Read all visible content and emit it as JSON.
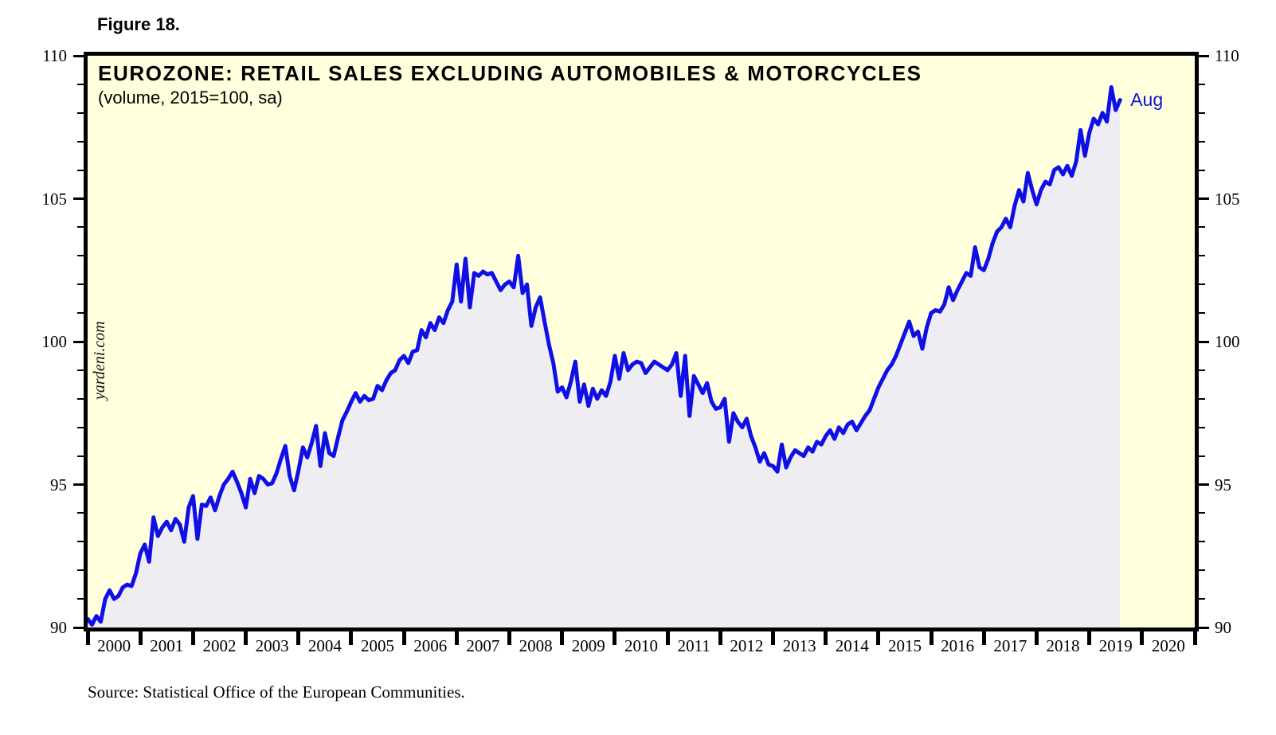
{
  "figure_label": "Figure 18.",
  "source": "Source: Statistical Office of the European Communities.",
  "watermark": "yardeni.com",
  "colors": {
    "plot_background": "#FFFFDE",
    "area_fill": "#EEEEF2",
    "line": "#0F0FE6",
    "frame": "#000000",
    "annotation": "#1414D8",
    "page_background": "#FFFFFF"
  },
  "chart_data": {
    "type": "line",
    "title": "EUROZONE: RETAIL SALES EXCLUDING AUTOMOBILES & MOTORCYCLES",
    "subtitle": "(volume, 2015=100, sa)",
    "frequency": "monthly",
    "x_start": "2000-01",
    "x_end": "2019-08",
    "x_axis": {
      "start_year": 2000,
      "end_year": 2021,
      "tick_labels": [
        "2000",
        "2001",
        "2002",
        "2003",
        "2004",
        "2005",
        "2006",
        "2007",
        "2008",
        "2009",
        "2010",
        "2011",
        "2012",
        "2013",
        "2014",
        "2015",
        "2016",
        "2017",
        "2018",
        "2019",
        "2020"
      ]
    },
    "y_axis": {
      "min": 90,
      "max": 110,
      "major_step": 5,
      "minor_step": 1,
      "major_ticks": [
        90,
        95,
        100,
        105,
        110
      ],
      "labels_both_sides": true
    },
    "grid": false,
    "legend": "none",
    "series": [
      {
        "name": "Eurozone retail sales excluding automobiles & motorcycles (volume index, 2015=100, sa)",
        "last_point_label": "Aug",
        "values": [
          90.3,
          90.1,
          90.4,
          90.2,
          91.0,
          91.3,
          91.0,
          91.1,
          91.4,
          91.5,
          91.45,
          91.9,
          92.6,
          92.9,
          92.3,
          93.85,
          93.2,
          93.5,
          93.7,
          93.4,
          93.8,
          93.6,
          93.0,
          94.2,
          94.6,
          93.1,
          94.3,
          94.25,
          94.55,
          94.1,
          94.6,
          95.0,
          95.2,
          95.45,
          95.1,
          94.7,
          94.2,
          95.2,
          94.7,
          95.3,
          95.2,
          95.0,
          95.05,
          95.4,
          95.9,
          96.35,
          95.3,
          94.8,
          95.5,
          96.3,
          95.95,
          96.45,
          97.05,
          95.65,
          96.8,
          96.1,
          96.0,
          96.65,
          97.25,
          97.55,
          97.9,
          98.2,
          97.9,
          98.1,
          97.95,
          98.0,
          98.45,
          98.3,
          98.65,
          98.9,
          99.0,
          99.35,
          99.5,
          99.25,
          99.65,
          99.7,
          100.4,
          100.15,
          100.65,
          100.4,
          100.85,
          100.65,
          101.1,
          101.4,
          102.7,
          101.4,
          102.9,
          101.2,
          102.4,
          102.3,
          102.45,
          102.35,
          102.4,
          102.1,
          101.8,
          102.0,
          102.1,
          101.9,
          103.0,
          101.7,
          102.0,
          100.55,
          101.2,
          101.55,
          100.7,
          99.9,
          99.25,
          98.25,
          98.4,
          98.05,
          98.6,
          99.3,
          97.9,
          98.5,
          97.75,
          98.35,
          98.0,
          98.3,
          98.1,
          98.6,
          99.5,
          98.7,
          99.6,
          99.0,
          99.2,
          99.3,
          99.25,
          98.9,
          99.1,
          99.3,
          99.2,
          99.1,
          99.0,
          99.2,
          99.6,
          98.1,
          99.5,
          97.4,
          98.8,
          98.5,
          98.2,
          98.55,
          97.9,
          97.65,
          97.7,
          98.0,
          96.5,
          97.5,
          97.2,
          97.0,
          97.3,
          96.7,
          96.3,
          95.8,
          96.1,
          95.7,
          95.65,
          95.45,
          96.4,
          95.6,
          95.95,
          96.2,
          96.1,
          96.0,
          96.3,
          96.15,
          96.5,
          96.4,
          96.7,
          96.9,
          96.6,
          97.0,
          96.8,
          97.1,
          97.2,
          96.9,
          97.15,
          97.4,
          97.6,
          98.0,
          98.4,
          98.7,
          99.0,
          99.2,
          99.5,
          99.9,
          100.3,
          100.7,
          100.2,
          100.35,
          99.75,
          100.5,
          101.0,
          101.1,
          101.05,
          101.3,
          101.9,
          101.45,
          101.8,
          102.1,
          102.4,
          102.3,
          103.3,
          102.6,
          102.5,
          102.9,
          103.45,
          103.85,
          104.0,
          104.3,
          104.0,
          104.75,
          105.3,
          104.9,
          105.9,
          105.3,
          104.8,
          105.3,
          105.6,
          105.5,
          106.0,
          106.1,
          105.85,
          106.15,
          105.8,
          106.3,
          107.4,
          106.5,
          107.3,
          107.8,
          107.6,
          108.0,
          107.7,
          108.9,
          108.1,
          108.45
        ]
      }
    ]
  }
}
